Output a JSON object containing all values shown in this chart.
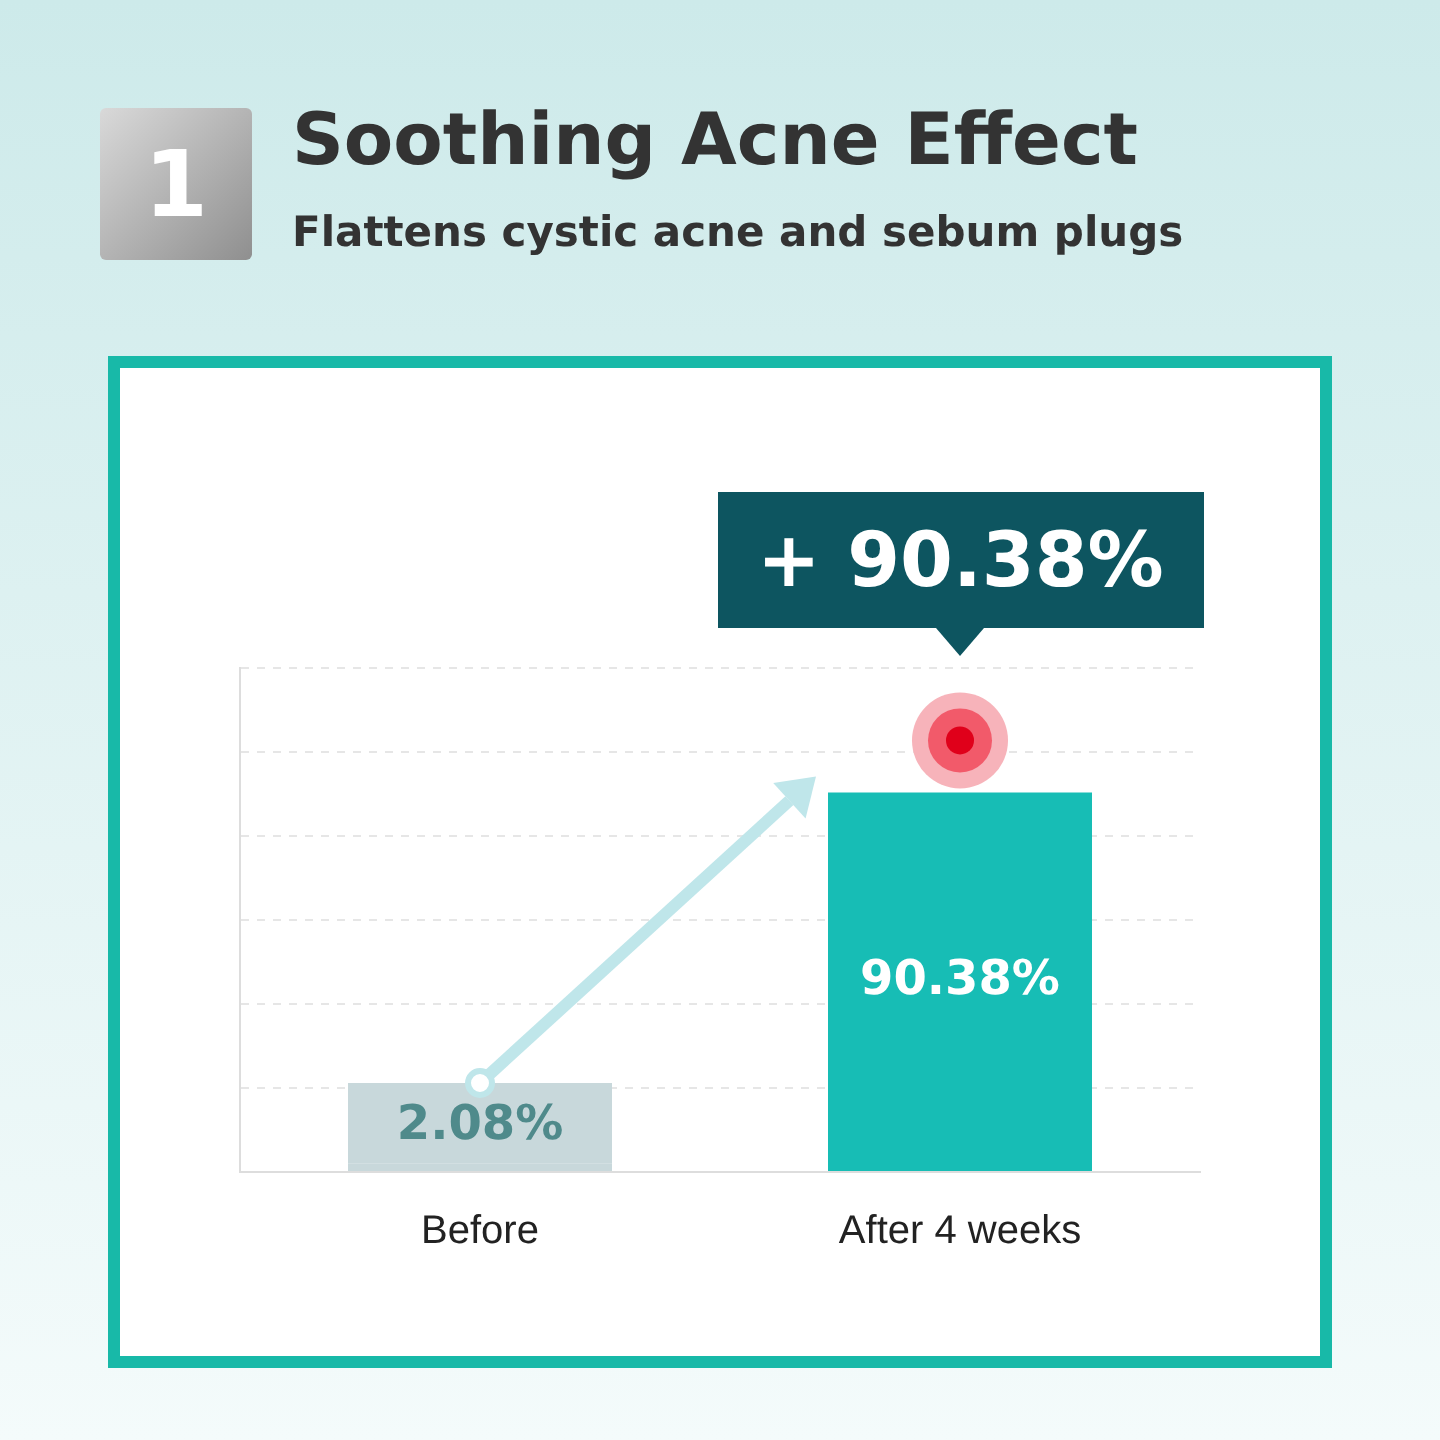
{
  "chart_data": {
    "type": "bar",
    "title": "Soothing Acne Effect",
    "subtitle": "Flattens cystic acne and sebum plugs",
    "categories": [
      "Before",
      "After 4 weeks"
    ],
    "values": [
      2.08,
      90.38
    ],
    "colors": [
      "#c8d8db",
      "#17bdb5"
    ],
    "value_labels": [
      "2.08%",
      "90.38%"
    ],
    "ylim": [
      0,
      120
    ],
    "yticks": [
      {
        "value": 0,
        "label": null
      },
      {
        "value": 20,
        "label": null
      },
      {
        "value": 40,
        "label": null
      },
      {
        "value": 60,
        "label": null
      },
      {
        "value": 80,
        "label": null
      },
      {
        "value": 100,
        "label": null
      },
      {
        "value": 120,
        "label": null
      }
    ],
    "grid": "y",
    "tick_labels": "x",
    "annotations": [
      "1",
      {
        "text": "+ 90.38%",
        "x": "After 4 weeks",
        "y": 90.38
      }
    ]
  }
}
